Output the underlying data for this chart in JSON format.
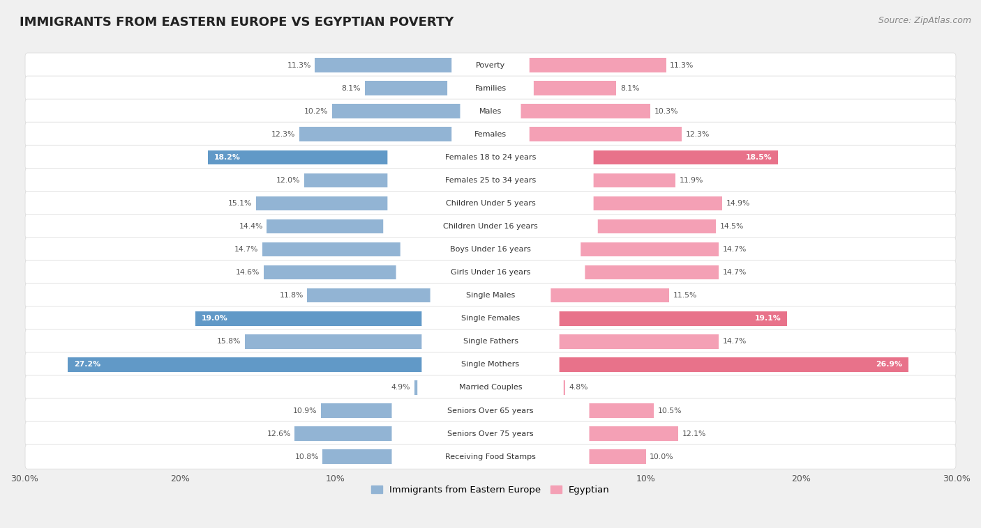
{
  "title": "IMMIGRANTS FROM EASTERN EUROPE VS EGYPTIAN POVERTY",
  "source": "Source: ZipAtlas.com",
  "categories": [
    "Poverty",
    "Families",
    "Males",
    "Females",
    "Females 18 to 24 years",
    "Females 25 to 34 years",
    "Children Under 5 years",
    "Children Under 16 years",
    "Boys Under 16 years",
    "Girls Under 16 years",
    "Single Males",
    "Single Females",
    "Single Fathers",
    "Single Mothers",
    "Married Couples",
    "Seniors Over 65 years",
    "Seniors Over 75 years",
    "Receiving Food Stamps"
  ],
  "left_values": [
    11.3,
    8.1,
    10.2,
    12.3,
    18.2,
    12.0,
    15.1,
    14.4,
    14.7,
    14.6,
    11.8,
    19.0,
    15.8,
    27.2,
    4.9,
    10.9,
    12.6,
    10.8
  ],
  "right_values": [
    11.3,
    8.1,
    10.3,
    12.3,
    18.5,
    11.9,
    14.9,
    14.5,
    14.7,
    14.7,
    11.5,
    19.1,
    14.7,
    26.9,
    4.8,
    10.5,
    12.1,
    10.0
  ],
  "left_color_normal": "#92b4d4",
  "left_color_highlight": "#6199c7",
  "right_color_normal": "#f4a0b5",
  "right_color_highlight": "#e8728a",
  "highlight_threshold": 17.0,
  "max_value": 30.0,
  "background_color": "#f0f0f0",
  "row_bg_color": "#ffffff",
  "row_border_color": "#d8d8d8",
  "label_color_normal": "#555555",
  "label_color_highlight": "#ffffff",
  "center_label_bg": "#ffffff",
  "title_fontsize": 13,
  "source_fontsize": 9,
  "legend_label_left": "Immigrants from Eastern Europe",
  "legend_label_right": "Egyptian",
  "tick_labels": [
    "30.0%",
    "20%",
    "10%",
    "",
    "10%",
    "20%",
    "30.0%"
  ],
  "tick_positions": [
    -30,
    -20,
    -10,
    0,
    10,
    20,
    30
  ]
}
